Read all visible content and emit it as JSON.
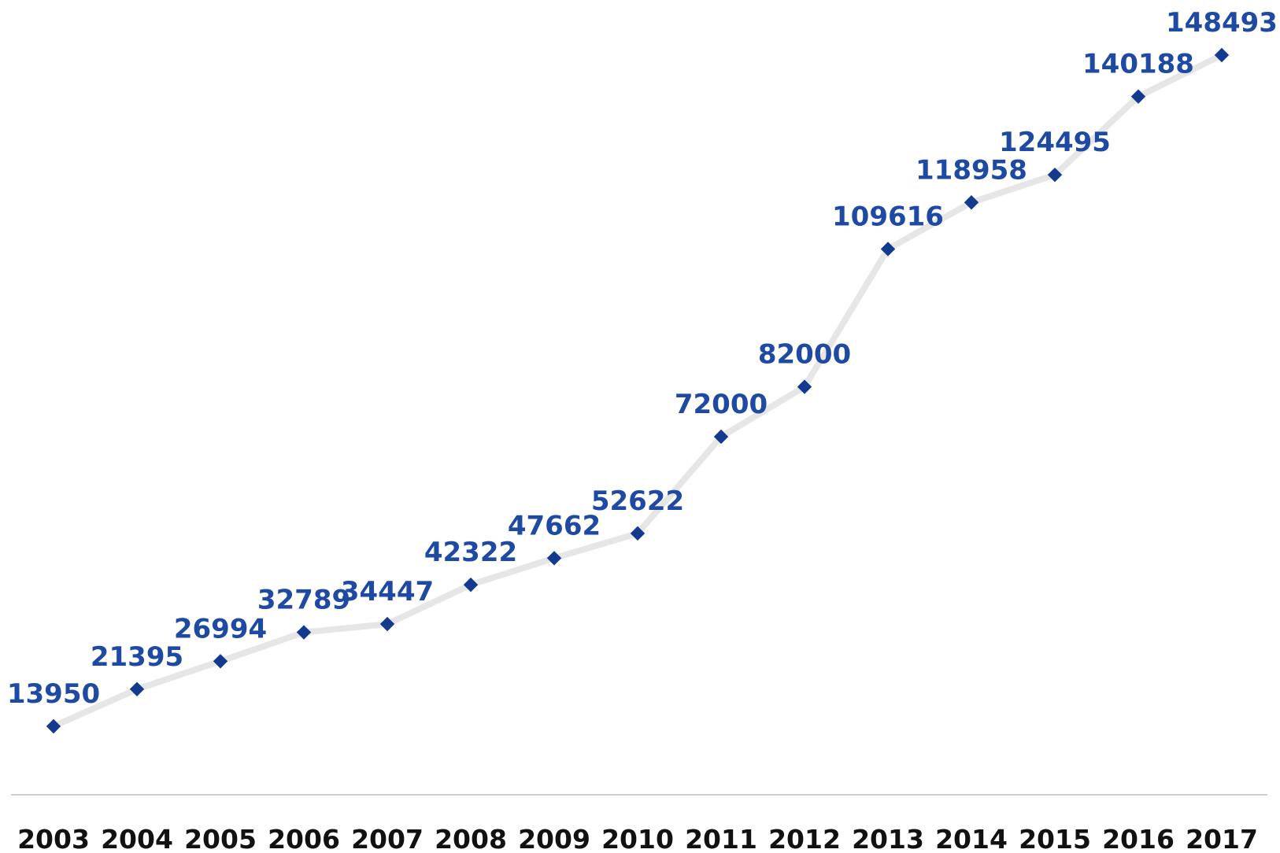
{
  "chart_data": {
    "type": "line",
    "title": "",
    "xlabel": "",
    "ylabel": "",
    "categories": [
      "2003",
      "2004",
      "2005",
      "2006",
      "2007",
      "2008",
      "2009",
      "2010",
      "2011",
      "2012",
      "2013",
      "2014",
      "2015",
      "2016",
      "2017"
    ],
    "series": [
      {
        "values": [
          13950,
          21395,
          26994,
          32789,
          34447,
          42322,
          47662,
          52622,
          72000,
          82000,
          109616,
          118958,
          124495,
          140188,
          148493
        ],
        "labels": [
          "13950",
          "21395",
          "26994",
          "32789",
          "34447",
          "42322",
          "47662",
          "52622",
          "72000",
          "82000",
          "109616",
          "118958",
          "124495",
          "140188",
          "148493"
        ]
      }
    ],
    "data_labels": true,
    "grid": false,
    "legend": "none",
    "colors": {
      "line": "#e6e6e6",
      "marker": "#143a8f",
      "label": "#1f4aa3",
      "axis": "#cfcfcf"
    }
  }
}
